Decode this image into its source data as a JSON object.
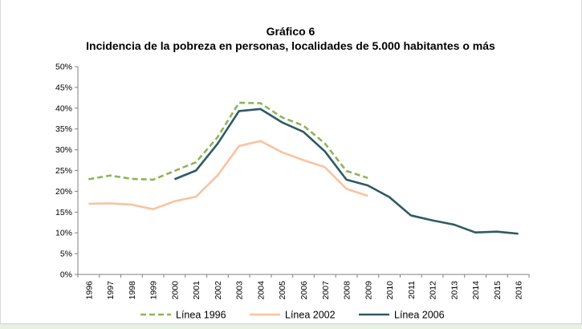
{
  "chart_data": {
    "type": "line",
    "title": "Gráfico 6",
    "subtitle": "Incidencia de la pobreza en personas, localidades de 5.000 habitantes o más",
    "xlabel": "",
    "ylabel": "",
    "ylim": [
      0,
      50
    ],
    "yticks": [
      "0%",
      "5%",
      "10%",
      "15%",
      "20%",
      "25%",
      "30%",
      "35%",
      "40%",
      "45%",
      "50%"
    ],
    "categories": [
      "1996",
      "1997",
      "1998",
      "1999",
      "2000",
      "2001",
      "2002",
      "2003",
      "2004",
      "2005",
      "2006",
      "2007",
      "2008",
      "2009",
      "2010",
      "2011",
      "2012",
      "2013",
      "2014",
      "2015",
      "2016"
    ],
    "grid": false,
    "legend_position": "bottom",
    "series": [
      {
        "name": "Línea 1996",
        "color": "#8db557",
        "dash": "dashed",
        "values": [
          22.9,
          23.8,
          23.0,
          22.8,
          24.9,
          27.0,
          33.0,
          41.3,
          41.2,
          37.8,
          35.8,
          31.5,
          24.9,
          23.2,
          null,
          null,
          null,
          null,
          null,
          null,
          null
        ]
      },
      {
        "name": "Línea 2002",
        "color": "#f8c3a0",
        "dash": "solid",
        "values": [
          17.0,
          17.1,
          16.8,
          15.7,
          17.6,
          18.7,
          23.8,
          30.9,
          32.1,
          29.4,
          27.5,
          25.8,
          20.6,
          18.9,
          null,
          null,
          null,
          null,
          null,
          null,
          null
        ]
      },
      {
        "name": "Línea 2006",
        "color": "#2e5b63",
        "dash": "solid",
        "values": [
          null,
          null,
          null,
          null,
          22.9,
          25.0,
          31.4,
          39.3,
          39.8,
          36.6,
          34.3,
          29.6,
          22.8,
          21.4,
          18.6,
          14.2,
          13.0,
          12.0,
          10.1,
          10.3,
          9.8
        ]
      }
    ]
  }
}
